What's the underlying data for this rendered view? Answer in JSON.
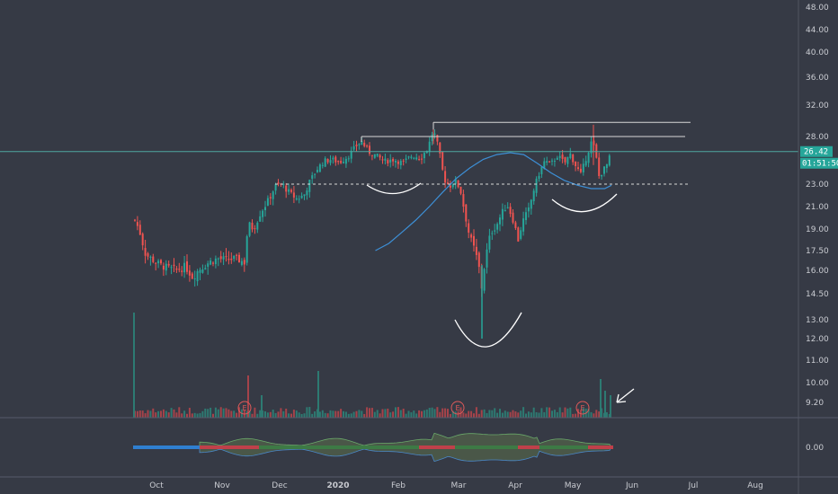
{
  "chart_data": {
    "type": "candlestick",
    "price_axis_ticks": [
      "48.00",
      "44.00",
      "40.00",
      "36.00",
      "32.00",
      "28.00",
      "23.00",
      "21.00",
      "19.00",
      "17.50",
      "16.00",
      "14.50",
      "13.00",
      "12.00",
      "11.00",
      "10.00",
      "9.20"
    ],
    "oscillator_axis_tick": "0.00",
    "time_axis_ticks": [
      {
        "label": "Oct",
        "bold": false
      },
      {
        "label": "Nov",
        "bold": false
      },
      {
        "label": "Dec",
        "bold": false
      },
      {
        "label": "2020",
        "bold": true
      },
      {
        "label": "Feb",
        "bold": false
      },
      {
        "label": "Mar",
        "bold": false
      },
      {
        "label": "Apr",
        "bold": false
      },
      {
        "label": "May",
        "bold": false
      },
      {
        "label": "Jun",
        "bold": false
      },
      {
        "label": "Jul",
        "bold": false
      },
      {
        "label": "Aug",
        "bold": false
      }
    ],
    "last_price": "26.42",
    "countdown": "01:51:50",
    "earnings_marker": "E",
    "levels": {
      "resistance_top": 29.8,
      "resistance_mid": 28.0,
      "neckline": 23.0,
      "last": 26.42
    },
    "colors": {
      "up": "#26a69a",
      "down": "#ef5350",
      "ma": "#3d8fd6",
      "level": "#d8d8d8",
      "last_line": "#4fa8a0",
      "background": "#363a45",
      "osc_bull": "#3d7a45",
      "osc_bear": "#6b3040"
    },
    "ma_values": [
      [
        0.3,
        17.5
      ],
      [
        0.34,
        18.0
      ],
      [
        0.38,
        18.8
      ],
      [
        0.42,
        19.8
      ],
      [
        0.46,
        21.0
      ],
      [
        0.5,
        22.3
      ],
      [
        0.54,
        23.6
      ],
      [
        0.58,
        24.7
      ],
      [
        0.62,
        25.6
      ],
      [
        0.66,
        26.1
      ],
      [
        0.7,
        26.3
      ],
      [
        0.74,
        26.1
      ],
      [
        0.78,
        25.2
      ],
      [
        0.82,
        24.2
      ],
      [
        0.86,
        23.4
      ],
      [
        0.9,
        22.9
      ],
      [
        0.94,
        22.6
      ],
      [
        0.98,
        22.6
      ],
      [
        1.0,
        22.9
      ]
    ],
    "series": [
      {
        "name": "price",
        "ohlcv": []
      }
    ]
  }
}
